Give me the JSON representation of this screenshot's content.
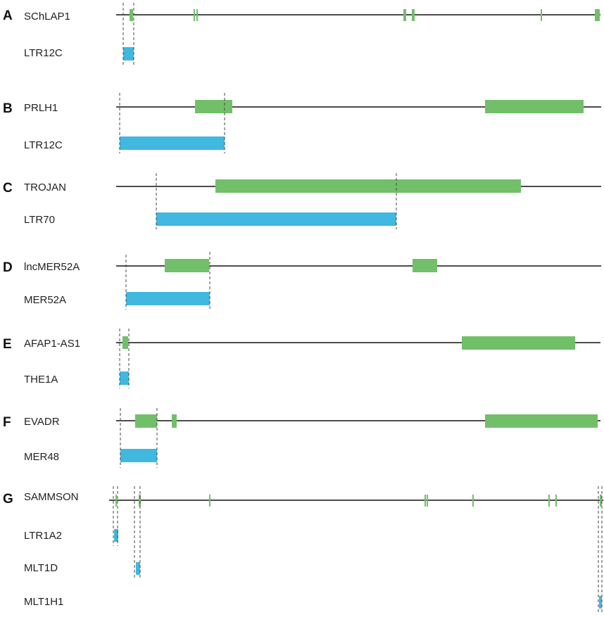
{
  "colors": {
    "exon": "#72bf6a",
    "te": "#40b8e0",
    "line": "#111111",
    "guide": "#444444"
  },
  "panels": [
    {
      "letter": "A",
      "gene": "SChLAP1",
      "tes": [
        {
          "name": "LTR12C"
        }
      ]
    },
    {
      "letter": "B",
      "gene": "PRLH1",
      "tes": [
        {
          "name": "LTR12C"
        }
      ]
    },
    {
      "letter": "C",
      "gene": "TROJAN",
      "tes": [
        {
          "name": "LTR70"
        }
      ]
    },
    {
      "letter": "D",
      "gene": "lncMER52A",
      "tes": [
        {
          "name": "MER52A"
        }
      ]
    },
    {
      "letter": "E",
      "gene": "AFAP1-AS1",
      "tes": [
        {
          "name": "THE1A"
        }
      ]
    },
    {
      "letter": "F",
      "gene": "EVADR",
      "tes": [
        {
          "name": "MER48"
        }
      ]
    },
    {
      "letter": "G",
      "gene": "SAMMSON",
      "tes": [
        {
          "name": "LTR1A2"
        },
        {
          "name": "MLT1D"
        },
        {
          "name": "MLT1H1"
        }
      ]
    }
  ]
}
